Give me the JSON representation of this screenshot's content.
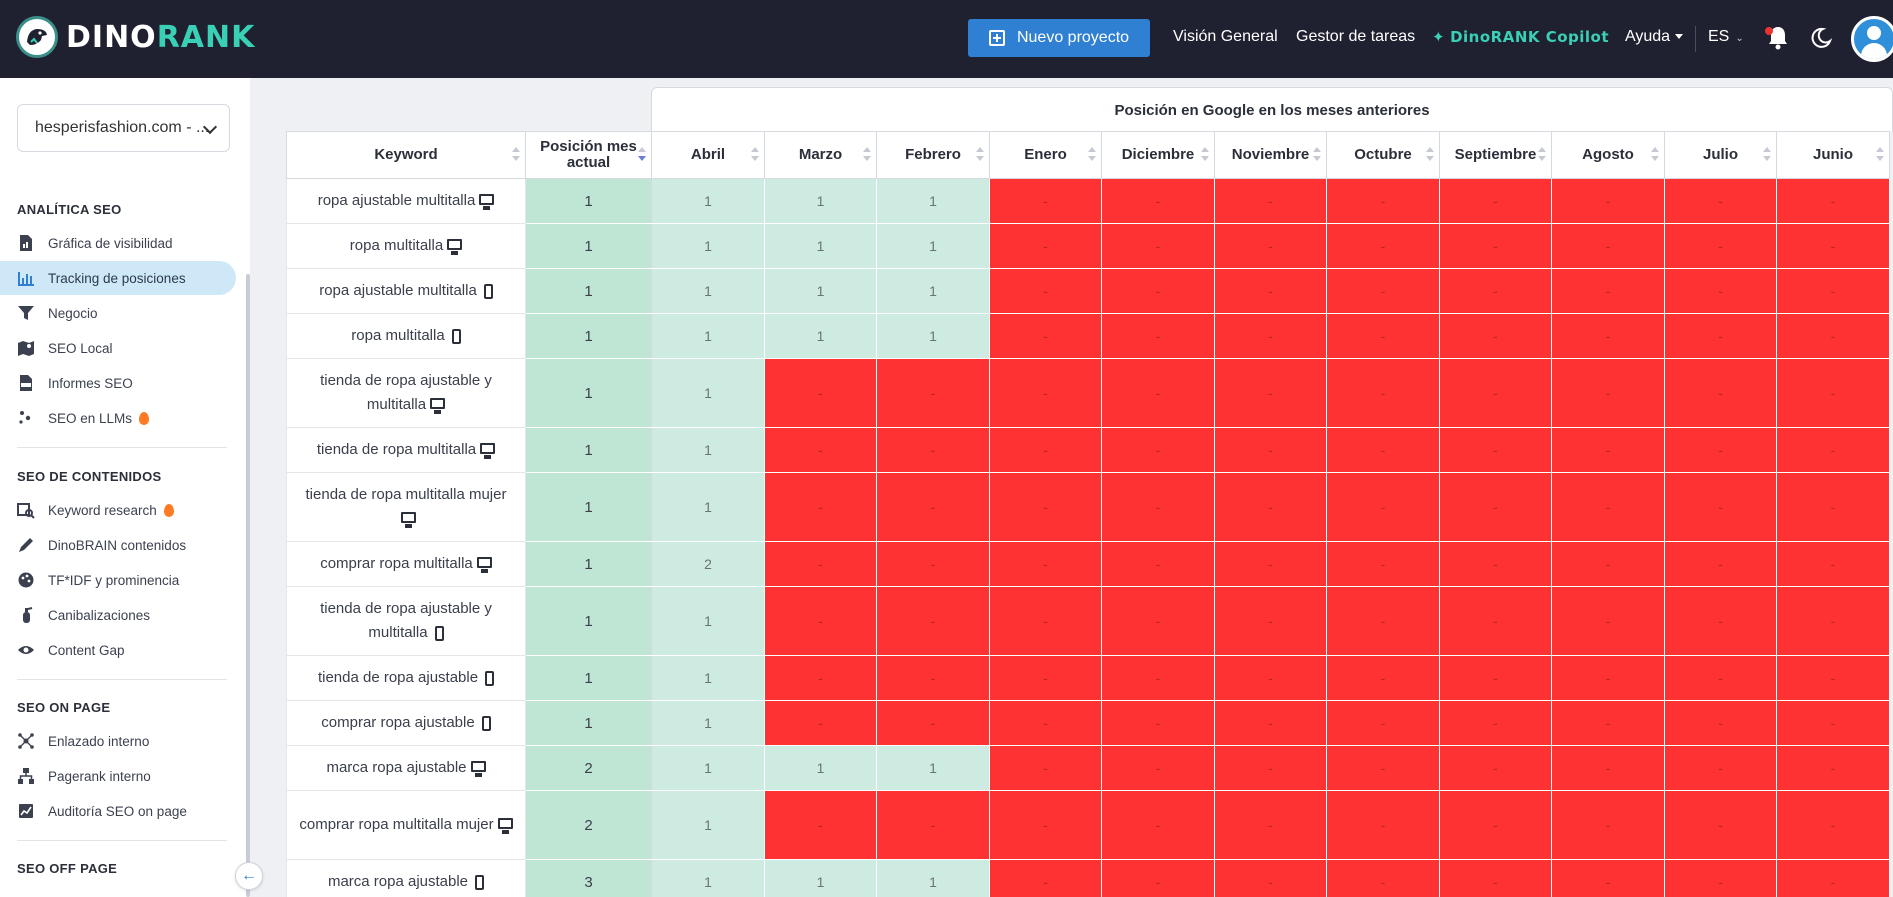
{
  "brand": {
    "part1": "DINO",
    "part2": "RANK"
  },
  "topnav": {
    "new_project": "Nuevo proyecto",
    "overview": "Visión General",
    "tasks": "Gestor de tareas",
    "copilot": "DinoRANK Copilot",
    "help": "Ayuda",
    "lang": "ES"
  },
  "sidebar": {
    "project": "hesperisfashion.com - ...",
    "sections": {
      "analytics": "ANALÍTICA SEO",
      "content": "SEO DE CONTENIDOS",
      "onpage": "SEO ON PAGE",
      "offpage": "SEO OFF PAGE"
    },
    "analytics_items": [
      {
        "label": "Gráfica de visibilidad",
        "icon": "document-chart-icon"
      },
      {
        "label": "Tracking de posiciones",
        "icon": "bar-chart-icon"
      },
      {
        "label": "Negocio",
        "icon": "funnel-icon"
      },
      {
        "label": "SEO Local",
        "icon": "map-icon"
      },
      {
        "label": "Informes SEO",
        "icon": "pdf-icon"
      },
      {
        "label": "SEO en LLMs",
        "icon": "sparkle-dots-icon"
      }
    ],
    "content_items": [
      {
        "label": "Keyword research",
        "icon": "keyword-icon"
      },
      {
        "label": "DinoBRAIN contenidos",
        "icon": "pen-icon"
      },
      {
        "label": "TF*IDF y prominencia",
        "icon": "palette-icon"
      },
      {
        "label": "Canibalizaciones",
        "icon": "fire-extinguisher-icon"
      },
      {
        "label": "Content Gap",
        "icon": "eye-icon"
      }
    ],
    "onpage_items": [
      {
        "label": "Enlazado interno",
        "icon": "network-icon"
      },
      {
        "label": "Pagerank interno",
        "icon": "sitemap-icon"
      },
      {
        "label": "Auditoría SEO on page",
        "icon": "audit-icon"
      }
    ]
  },
  "table": {
    "group_header": "Posición en Google en los meses anteriores",
    "col_keyword": "Keyword",
    "col_current": "Posición mes actual",
    "months": [
      "Abril",
      "Marzo",
      "Febrero",
      "Enero",
      "Diciembre",
      "Noviembre",
      "Octubre",
      "Septiembre",
      "Agosto",
      "Julio",
      "Junio"
    ],
    "rows": [
      {
        "keyword": "ropa ajustable multitalla",
        "device": "desktop",
        "current": "1",
        "history": [
          "1",
          "1",
          "1",
          "-",
          "-",
          "-",
          "-",
          "-",
          "-",
          "-",
          "-"
        ]
      },
      {
        "keyword": "ropa multitalla",
        "device": "desktop",
        "current": "1",
        "history": [
          "1",
          "1",
          "1",
          "-",
          "-",
          "-",
          "-",
          "-",
          "-",
          "-",
          "-"
        ]
      },
      {
        "keyword": "ropa ajustable multitalla",
        "device": "mobile",
        "current": "1",
        "history": [
          "1",
          "1",
          "1",
          "-",
          "-",
          "-",
          "-",
          "-",
          "-",
          "-",
          "-"
        ]
      },
      {
        "keyword": "ropa multitalla",
        "device": "mobile",
        "current": "1",
        "history": [
          "1",
          "1",
          "1",
          "-",
          "-",
          "-",
          "-",
          "-",
          "-",
          "-",
          "-"
        ]
      },
      {
        "keyword": "tienda de ropa ajustable y multitalla",
        "device": "desktop",
        "current": "1",
        "history": [
          "1",
          "-",
          "-",
          "-",
          "-",
          "-",
          "-",
          "-",
          "-",
          "-",
          "-"
        ]
      },
      {
        "keyword": "tienda de ropa multitalla",
        "device": "desktop",
        "current": "1",
        "history": [
          "1",
          "-",
          "-",
          "-",
          "-",
          "-",
          "-",
          "-",
          "-",
          "-",
          "-"
        ]
      },
      {
        "keyword": "tienda de ropa multitalla mujer",
        "device": "desktop",
        "current": "1",
        "history": [
          "1",
          "-",
          "-",
          "-",
          "-",
          "-",
          "-",
          "-",
          "-",
          "-",
          "-"
        ]
      },
      {
        "keyword": "comprar ropa multitalla",
        "device": "desktop",
        "current": "1",
        "history": [
          "2",
          "-",
          "-",
          "-",
          "-",
          "-",
          "-",
          "-",
          "-",
          "-",
          "-"
        ]
      },
      {
        "keyword": "tienda de ropa ajustable y multitalla",
        "device": "mobile",
        "current": "1",
        "history": [
          "1",
          "-",
          "-",
          "-",
          "-",
          "-",
          "-",
          "-",
          "-",
          "-",
          "-"
        ]
      },
      {
        "keyword": "tienda de ropa ajustable",
        "device": "mobile",
        "current": "1",
        "history": [
          "1",
          "-",
          "-",
          "-",
          "-",
          "-",
          "-",
          "-",
          "-",
          "-",
          "-"
        ]
      },
      {
        "keyword": "comprar ropa ajustable",
        "device": "mobile",
        "current": "1",
        "history": [
          "1",
          "-",
          "-",
          "-",
          "-",
          "-",
          "-",
          "-",
          "-",
          "-",
          "-"
        ]
      },
      {
        "keyword": "marca ropa ajustable",
        "device": "desktop",
        "current": "2",
        "history": [
          "1",
          "1",
          "1",
          "-",
          "-",
          "-",
          "-",
          "-",
          "-",
          "-",
          "-"
        ]
      },
      {
        "keyword": "comprar ropa multitalla mujer",
        "device": "desktop",
        "current": "2",
        "history": [
          "1",
          "-",
          "-",
          "-",
          "-",
          "-",
          "-",
          "-",
          "-",
          "-",
          "-"
        ]
      },
      {
        "keyword": "marca ropa ajustable",
        "device": "mobile",
        "current": "3",
        "history": [
          "1",
          "1",
          "1",
          "-",
          "-",
          "-",
          "-",
          "-",
          "-",
          "-",
          "-"
        ]
      }
    ]
  },
  "colors": {
    "nav_bg": "#1f2130",
    "accent_teal": "#3ad0b6",
    "primary_blue": "#2f7fd3",
    "cell_green": "#cdebe0",
    "cell_current": "#bfe5d5",
    "cell_red": "#fe3232"
  }
}
